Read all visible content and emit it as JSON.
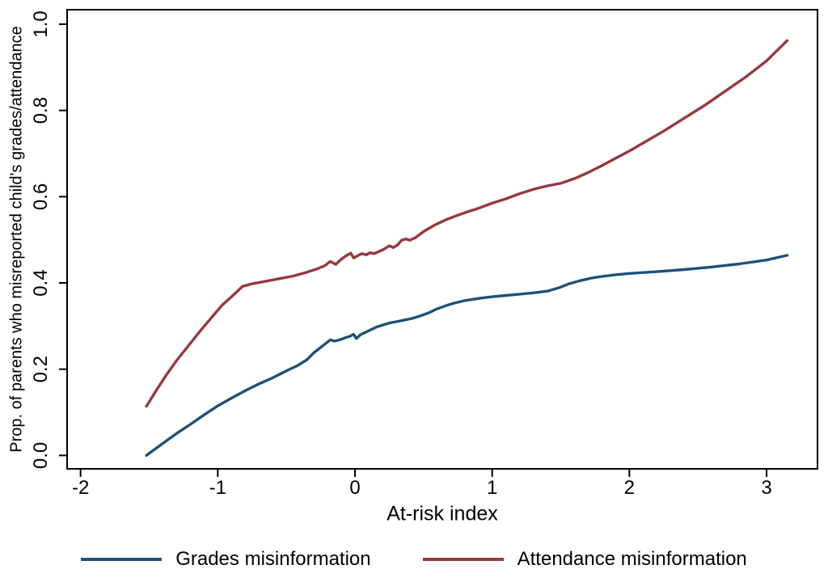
{
  "chart_data": {
    "type": "line",
    "title": "",
    "xlabel": "At-risk index",
    "ylabel": "Prop. of parents who misreported child's grades/attendance",
    "xlim": [
      -2.098,
      3.371
    ],
    "ylim": [
      -0.0311,
      1.0336
    ],
    "x_ticks": [
      -2,
      -1,
      0,
      1,
      2,
      3
    ],
    "x_tick_labels": [
      "-2",
      "-1",
      "0",
      "1",
      "2",
      "3"
    ],
    "y_ticks": [
      0,
      0.2,
      0.4,
      0.6,
      0.8,
      1.0
    ],
    "y_tick_labels": [
      "0.0",
      "0.2",
      "0.4",
      "0.6",
      "0.8",
      "1.0"
    ],
    "grid": false,
    "legend_position": "bottom",
    "frame_color": "#000000",
    "series": [
      {
        "name": "Grades misinformation",
        "color": "#1f5178",
        "points": [
          [
            -1.52,
            0.0
          ],
          [
            -1.4,
            0.028
          ],
          [
            -1.3,
            0.051
          ],
          [
            -1.2,
            0.072
          ],
          [
            -1.1,
            0.094
          ],
          [
            -1.0,
            0.115
          ],
          [
            -0.9,
            0.133
          ],
          [
            -0.8,
            0.15
          ],
          [
            -0.7,
            0.166
          ],
          [
            -0.6,
            0.18
          ],
          [
            -0.5,
            0.196
          ],
          [
            -0.42,
            0.208
          ],
          [
            -0.35,
            0.222
          ],
          [
            -0.3,
            0.238
          ],
          [
            -0.26,
            0.248
          ],
          [
            -0.22,
            0.258
          ],
          [
            -0.18,
            0.268
          ],
          [
            -0.15,
            0.265
          ],
          [
            -0.11,
            0.268
          ],
          [
            -0.07,
            0.273
          ],
          [
            -0.04,
            0.276
          ],
          [
            -0.01,
            0.281
          ],
          [
            0.01,
            0.271
          ],
          [
            0.04,
            0.28
          ],
          [
            0.08,
            0.286
          ],
          [
            0.12,
            0.292
          ],
          [
            0.16,
            0.298
          ],
          [
            0.2,
            0.302
          ],
          [
            0.25,
            0.307
          ],
          [
            0.3,
            0.31
          ],
          [
            0.36,
            0.314
          ],
          [
            0.42,
            0.318
          ],
          [
            0.48,
            0.324
          ],
          [
            0.54,
            0.331
          ],
          [
            0.6,
            0.34
          ],
          [
            0.66,
            0.347
          ],
          [
            0.72,
            0.353
          ],
          [
            0.8,
            0.359
          ],
          [
            0.9,
            0.364
          ],
          [
            1.0,
            0.368
          ],
          [
            1.1,
            0.371
          ],
          [
            1.2,
            0.374
          ],
          [
            1.3,
            0.377
          ],
          [
            1.4,
            0.381
          ],
          [
            1.48,
            0.388
          ],
          [
            1.56,
            0.398
          ],
          [
            1.64,
            0.405
          ],
          [
            1.72,
            0.411
          ],
          [
            1.8,
            0.415
          ],
          [
            1.9,
            0.419
          ],
          [
            2.0,
            0.422
          ],
          [
            2.2,
            0.426
          ],
          [
            2.4,
            0.431
          ],
          [
            2.6,
            0.437
          ],
          [
            2.8,
            0.444
          ],
          [
            3.0,
            0.453
          ],
          [
            3.15,
            0.464
          ]
        ]
      },
      {
        "name": "Attendance misinformation",
        "color": "#96383f",
        "points": [
          [
            -1.52,
            0.114
          ],
          [
            -1.45,
            0.15
          ],
          [
            -1.38,
            0.184
          ],
          [
            -1.3,
            0.22
          ],
          [
            -1.22,
            0.252
          ],
          [
            -1.13,
            0.288
          ],
          [
            -1.05,
            0.318
          ],
          [
            -0.97,
            0.348
          ],
          [
            -0.9,
            0.368
          ],
          [
            -0.86,
            0.38
          ],
          [
            -0.82,
            0.392
          ],
          [
            -0.75,
            0.398
          ],
          [
            -0.65,
            0.404
          ],
          [
            -0.55,
            0.41
          ],
          [
            -0.45,
            0.416
          ],
          [
            -0.36,
            0.424
          ],
          [
            -0.28,
            0.432
          ],
          [
            -0.22,
            0.44
          ],
          [
            -0.18,
            0.45
          ],
          [
            -0.14,
            0.443
          ],
          [
            -0.1,
            0.455
          ],
          [
            -0.06,
            0.464
          ],
          [
            -0.03,
            0.469
          ],
          [
            -0.01,
            0.458
          ],
          [
            0.02,
            0.463
          ],
          [
            0.05,
            0.468
          ],
          [
            0.08,
            0.465
          ],
          [
            0.11,
            0.47
          ],
          [
            0.14,
            0.468
          ],
          [
            0.17,
            0.472
          ],
          [
            0.21,
            0.478
          ],
          [
            0.25,
            0.486
          ],
          [
            0.28,
            0.482
          ],
          [
            0.31,
            0.488
          ],
          [
            0.34,
            0.499
          ],
          [
            0.37,
            0.502
          ],
          [
            0.4,
            0.499
          ],
          [
            0.44,
            0.505
          ],
          [
            0.5,
            0.519
          ],
          [
            0.58,
            0.534
          ],
          [
            0.66,
            0.546
          ],
          [
            0.74,
            0.556
          ],
          [
            0.82,
            0.565
          ],
          [
            0.9,
            0.573
          ],
          [
            1.0,
            0.585
          ],
          [
            1.1,
            0.595
          ],
          [
            1.2,
            0.607
          ],
          [
            1.3,
            0.617
          ],
          [
            1.4,
            0.625
          ],
          [
            1.5,
            0.631
          ],
          [
            1.6,
            0.642
          ],
          [
            1.7,
            0.656
          ],
          [
            1.8,
            0.672
          ],
          [
            1.9,
            0.689
          ],
          [
            2.0,
            0.706
          ],
          [
            2.12,
            0.728
          ],
          [
            2.25,
            0.752
          ],
          [
            2.4,
            0.782
          ],
          [
            2.55,
            0.812
          ],
          [
            2.7,
            0.845
          ],
          [
            2.85,
            0.878
          ],
          [
            3.0,
            0.915
          ],
          [
            3.15,
            0.962
          ]
        ]
      }
    ]
  }
}
